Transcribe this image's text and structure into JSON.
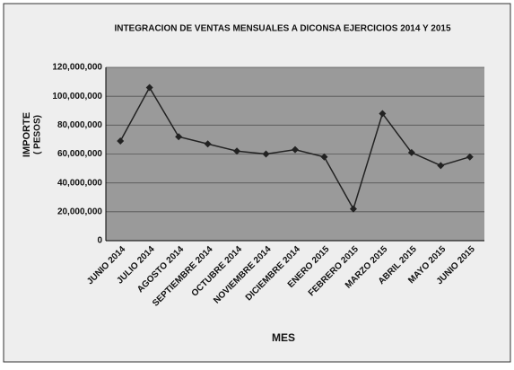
{
  "chart_data": {
    "type": "line",
    "title": "INTEGRACION  DE VENTAS MENSUALES A DICONSA EJERCICIOS 2014 Y 2015",
    "y_label": [
      "IMPORTE",
      "( PESOS)"
    ],
    "x_label": "MES",
    "categories": [
      "JUNIO 2014",
      "JULIO 2014",
      "AGOSTO 2014",
      "SEPTIEMBRE 2014",
      "OCTUBRE 2014",
      "NOVIEMBRE 2014",
      "DICIEMBRE 2014",
      "ENERO 2015",
      "FEBRERO 2015",
      "MARZO 2015",
      "ABRIL 2015",
      "MAYO 2015",
      "JUNIO 2015"
    ],
    "values": [
      69000000,
      106000000,
      72000000,
      67000000,
      62000000,
      60000000,
      63000000,
      58000000,
      22000000,
      88000000,
      61000000,
      52000000,
      58000000
    ],
    "color": "#222222",
    "ylim": [
      0,
      120000000
    ],
    "yticks": [
      0,
      {
        "value": 20000000,
        "label": "20,000,000"
      },
      {
        "value": 40000000,
        "label": "40,000,000"
      },
      {
        "value": 60000000,
        "label": "60,000,000"
      },
      {
        "value": 80000000,
        "label": "80,000,000"
      },
      {
        "value": 100000000,
        "label": "100,000,000"
      },
      {
        "value": 120000000,
        "label": "120,000,000"
      }
    ],
    "grid": true
  }
}
